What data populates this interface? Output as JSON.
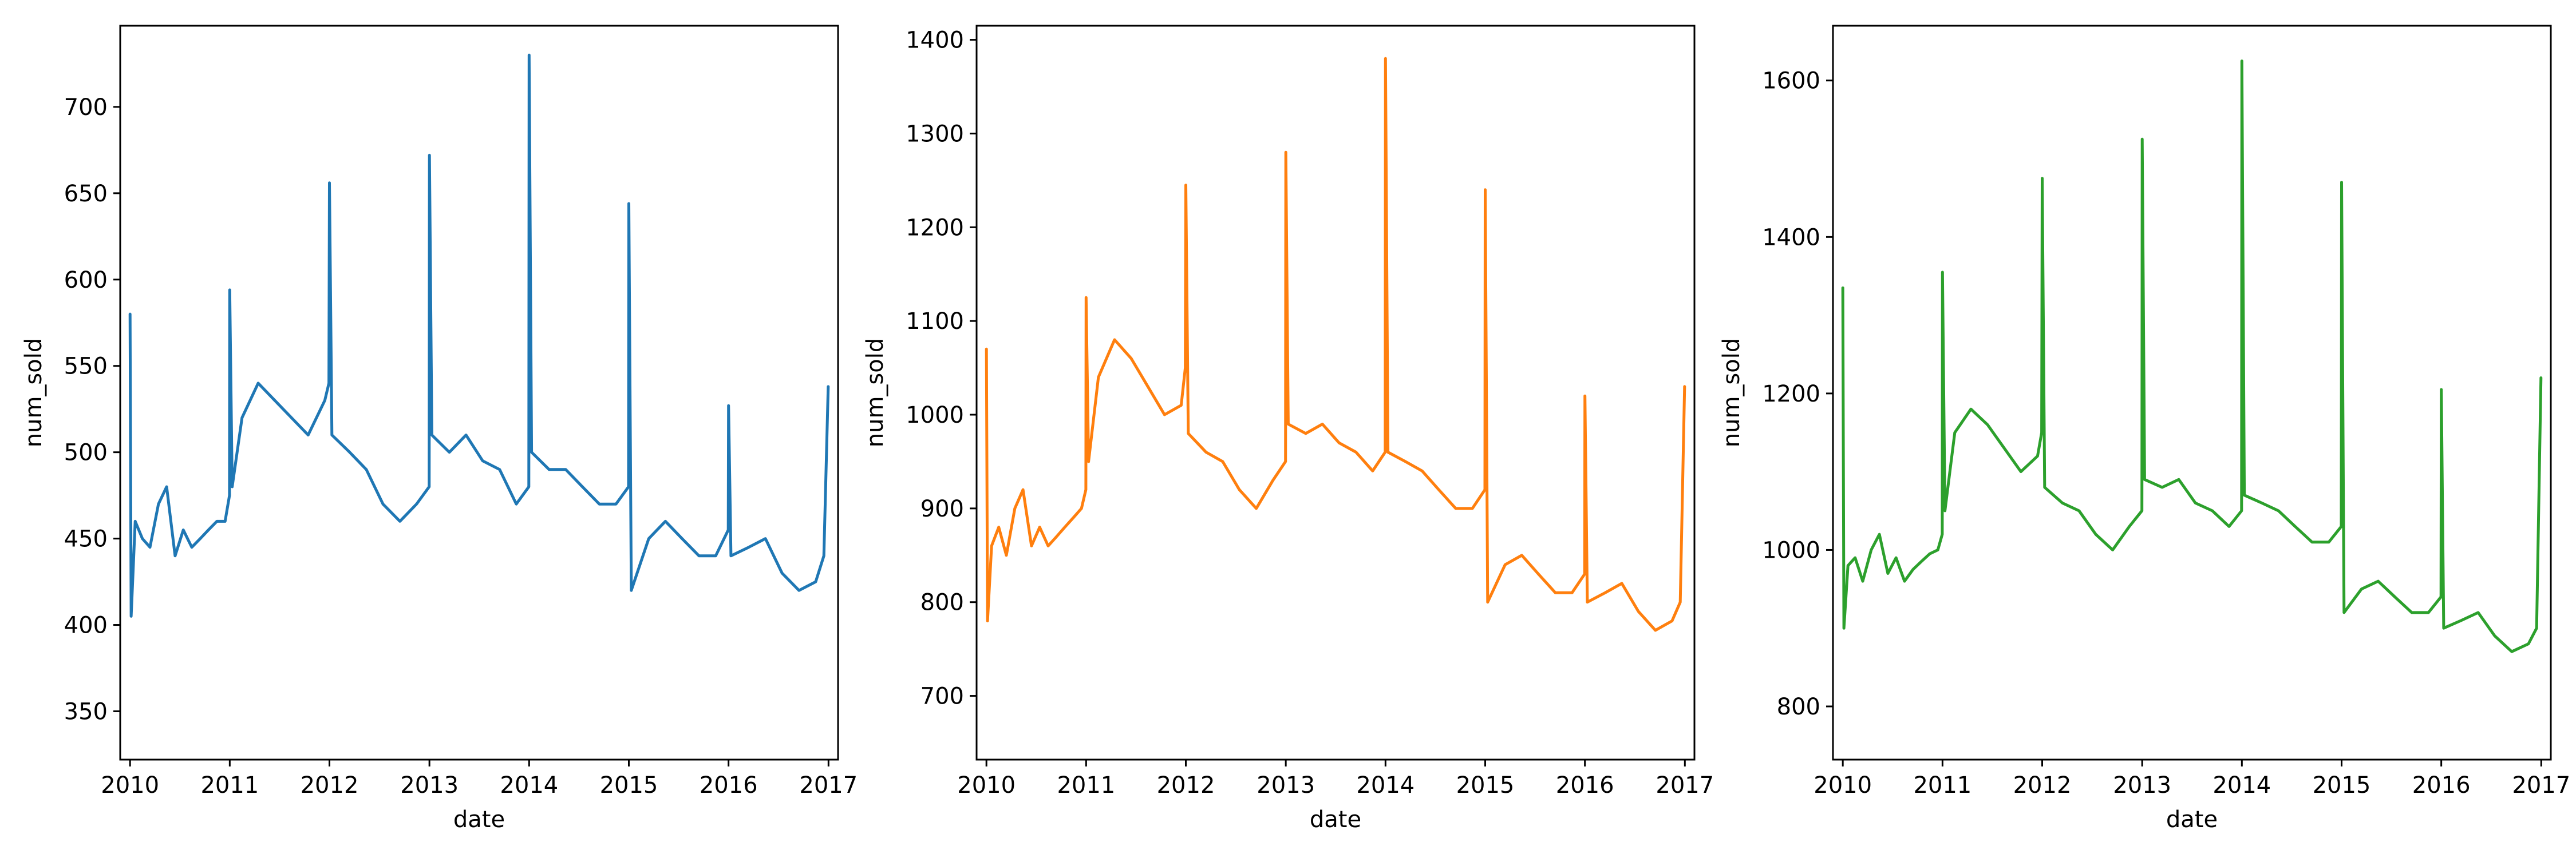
{
  "chart_data": [
    {
      "type": "line",
      "xlabel": "date",
      "ylabel": "num_sold",
      "xlim": [
        "2009-11-26",
        "2017-02-05"
      ],
      "ylim": [
        322,
        747
      ],
      "x_ticks": [
        "2010",
        "2011",
        "2012",
        "2013",
        "2014",
        "2015",
        "2016",
        "2017"
      ],
      "y_ticks": [
        350,
        400,
        450,
        500,
        550,
        600,
        650,
        700
      ],
      "grid": false,
      "color": "#1f77b4",
      "series": [
        {
          "x": [
            "2010-01-01",
            "2010-01-05",
            "2010-01-20",
            "2010-02-15",
            "2010-03-15",
            "2010-04-15",
            "2010-05-15",
            "2010-06-15",
            "2010-07-15",
            "2010-08-15",
            "2010-09-15",
            "2010-10-15",
            "2010-11-15",
            "2010-12-15",
            "2010-12-31",
            "2011-01-01",
            "2011-01-10",
            "2011-02-15",
            "2011-04-15",
            "2011-06-15",
            "2011-08-15",
            "2011-10-15",
            "2011-12-15",
            "2011-12-30",
            "2012-01-01",
            "2012-01-10",
            "2012-03-15",
            "2012-05-15",
            "2012-07-15",
            "2012-09-15",
            "2012-11-15",
            "2012-12-31",
            "2013-01-01",
            "2013-01-10",
            "2013-03-15",
            "2013-05-15",
            "2013-07-15",
            "2013-09-15",
            "2013-11-15",
            "2013-12-31",
            "2014-01-01",
            "2014-01-10",
            "2014-03-15",
            "2014-05-15",
            "2014-07-15",
            "2014-09-15",
            "2014-11-15",
            "2014-12-31",
            "2015-01-01",
            "2015-01-10",
            "2015-03-15",
            "2015-05-15",
            "2015-07-15",
            "2015-09-15",
            "2015-11-15",
            "2015-12-31",
            "2016-01-01",
            "2016-01-10",
            "2016-03-15",
            "2016-05-15",
            "2016-07-15",
            "2016-09-15",
            "2016-11-15",
            "2016-12-15",
            "2016-12-31"
          ],
          "values": [
            580,
            405,
            460,
            450,
            445,
            470,
            480,
            440,
            455,
            445,
            450,
            455,
            460,
            460,
            475,
            594,
            480,
            520,
            540,
            530,
            520,
            510,
            530,
            540,
            656,
            510,
            500,
            490,
            470,
            460,
            470,
            480,
            672,
            510,
            500,
            510,
            495,
            490,
            470,
            480,
            730,
            500,
            490,
            490,
            480,
            470,
            470,
            480,
            644,
            420,
            450,
            460,
            450,
            440,
            440,
            455,
            527,
            440,
            445,
            450,
            430,
            420,
            425,
            440,
            538
          ]
        }
      ]
    },
    {
      "type": "line",
      "xlabel": "date",
      "ylabel": "num_sold",
      "xlim": [
        "2009-11-26",
        "2017-02-05"
      ],
      "ylim": [
        632,
        1415
      ],
      "x_ticks": [
        "2010",
        "2011",
        "2012",
        "2013",
        "2014",
        "2015",
        "2016",
        "2017"
      ],
      "y_ticks": [
        700,
        800,
        900,
        1000,
        1100,
        1200,
        1300,
        1400
      ],
      "grid": false,
      "color": "#ff7f0e",
      "series": [
        {
          "x": [
            "2010-01-01",
            "2010-01-05",
            "2010-01-20",
            "2010-02-15",
            "2010-03-15",
            "2010-04-15",
            "2010-05-15",
            "2010-06-15",
            "2010-07-15",
            "2010-08-15",
            "2010-09-15",
            "2010-10-15",
            "2010-11-15",
            "2010-12-15",
            "2010-12-31",
            "2011-01-01",
            "2011-01-10",
            "2011-02-15",
            "2011-04-15",
            "2011-06-15",
            "2011-08-15",
            "2011-10-15",
            "2011-12-15",
            "2011-12-30",
            "2012-01-01",
            "2012-01-10",
            "2012-03-15",
            "2012-05-15",
            "2012-07-15",
            "2012-09-15",
            "2012-11-15",
            "2012-12-31",
            "2013-01-01",
            "2013-01-10",
            "2013-03-15",
            "2013-05-15",
            "2013-07-15",
            "2013-09-15",
            "2013-11-15",
            "2013-12-31",
            "2014-01-01",
            "2014-01-10",
            "2014-03-15",
            "2014-05-15",
            "2014-07-15",
            "2014-09-15",
            "2014-11-15",
            "2014-12-31",
            "2015-01-01",
            "2015-01-10",
            "2015-03-15",
            "2015-05-15",
            "2015-07-15",
            "2015-09-15",
            "2015-11-15",
            "2015-12-31",
            "2016-01-01",
            "2016-01-10",
            "2016-03-15",
            "2016-05-15",
            "2016-07-15",
            "2016-09-15",
            "2016-11-15",
            "2016-12-15",
            "2016-12-31"
          ],
          "values": [
            1070,
            780,
            860,
            880,
            850,
            900,
            920,
            860,
            880,
            860,
            870,
            880,
            890,
            900,
            920,
            1125,
            950,
            1040,
            1080,
            1060,
            1030,
            1000,
            1010,
            1050,
            1245,
            980,
            960,
            950,
            920,
            900,
            930,
            950,
            1280,
            990,
            980,
            990,
            970,
            960,
            940,
            960,
            1380,
            960,
            950,
            940,
            920,
            900,
            900,
            920,
            1240,
            800,
            840,
            850,
            830,
            810,
            810,
            830,
            1020,
            800,
            810,
            820,
            790,
            770,
            780,
            800,
            1030
          ]
        }
      ]
    },
    {
      "type": "line",
      "xlabel": "date",
      "ylabel": "num_sold",
      "xlim": [
        "2009-11-26",
        "2017-02-05"
      ],
      "ylim": [
        732,
        1670
      ],
      "x_ticks": [
        "2010",
        "2011",
        "2012",
        "2013",
        "2014",
        "2015",
        "2016",
        "2017"
      ],
      "y_ticks": [
        800,
        1000,
        1200,
        1400,
        1600
      ],
      "grid": false,
      "color": "#2ca02c",
      "series": [
        {
          "x": [
            "2010-01-01",
            "2010-01-05",
            "2010-01-20",
            "2010-02-15",
            "2010-03-15",
            "2010-04-15",
            "2010-05-15",
            "2010-06-15",
            "2010-07-15",
            "2010-08-15",
            "2010-09-15",
            "2010-10-15",
            "2010-11-15",
            "2010-12-15",
            "2010-12-31",
            "2011-01-01",
            "2011-01-10",
            "2011-02-15",
            "2011-04-15",
            "2011-06-15",
            "2011-08-15",
            "2011-10-15",
            "2011-12-15",
            "2011-12-30",
            "2012-01-01",
            "2012-01-10",
            "2012-03-15",
            "2012-05-15",
            "2012-07-15",
            "2012-09-15",
            "2012-11-15",
            "2012-12-31",
            "2013-01-01",
            "2013-01-10",
            "2013-03-15",
            "2013-05-15",
            "2013-07-15",
            "2013-09-15",
            "2013-11-15",
            "2013-12-31",
            "2014-01-01",
            "2014-01-10",
            "2014-03-15",
            "2014-05-15",
            "2014-07-15",
            "2014-09-15",
            "2014-11-15",
            "2014-12-31",
            "2015-01-01",
            "2015-01-10",
            "2015-03-15",
            "2015-05-15",
            "2015-07-15",
            "2015-09-15",
            "2015-11-15",
            "2015-12-31",
            "2016-01-01",
            "2016-01-10",
            "2016-03-15",
            "2016-05-15",
            "2016-07-15",
            "2016-09-15",
            "2016-11-15",
            "2016-12-15",
            "2016-12-31"
          ],
          "values": [
            1335,
            900,
            980,
            990,
            960,
            1000,
            1020,
            970,
            990,
            960,
            975,
            985,
            995,
            1000,
            1020,
            1355,
            1050,
            1150,
            1180,
            1160,
            1130,
            1100,
            1120,
            1150,
            1475,
            1080,
            1060,
            1050,
            1020,
            1000,
            1030,
            1050,
            1525,
            1090,
            1080,
            1090,
            1060,
            1050,
            1030,
            1050,
            1625,
            1070,
            1060,
            1050,
            1030,
            1010,
            1010,
            1030,
            1470,
            920,
            950,
            960,
            940,
            920,
            920,
            940,
            1205,
            900,
            910,
            920,
            890,
            870,
            880,
            900,
            1220
          ]
        }
      ]
    }
  ]
}
